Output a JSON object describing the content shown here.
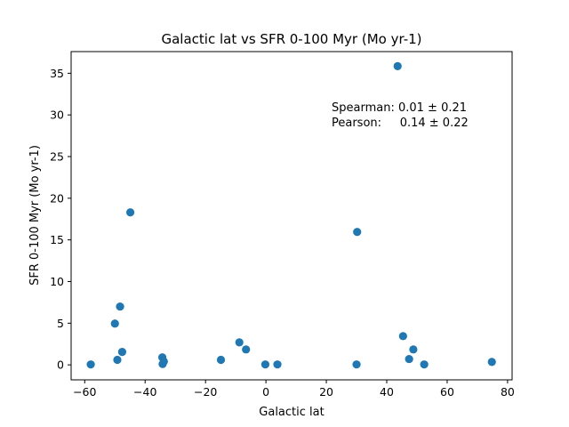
{
  "chart_data": {
    "type": "scatter",
    "title": "Galactic lat vs SFR 0-100 Myr (Mo yr-1)",
    "xlabel": "Galactic lat",
    "ylabel": "SFR 0-100 Myr (Mo yr-1)",
    "xlim": [
      -64.5,
      81.5
    ],
    "ylim": [
      -1.8,
      37.6
    ],
    "xticks": [
      -60,
      -40,
      -20,
      0,
      20,
      40,
      60,
      80
    ],
    "yticks": [
      0,
      5,
      10,
      15,
      20,
      25,
      30,
      35
    ],
    "grid": false,
    "marker_color": "#1f77b4",
    "annotations": [
      "Spearman: 0.01 ± 0.21",
      "Pearson:     0.14 ± 0.22"
    ],
    "points": [
      {
        "x": -58.0,
        "y": 0.05
      },
      {
        "x": -50.0,
        "y": 4.95
      },
      {
        "x": -49.2,
        "y": 0.6
      },
      {
        "x": -48.3,
        "y": 7.0
      },
      {
        "x": -47.6,
        "y": 1.55
      },
      {
        "x": -44.9,
        "y": 18.3
      },
      {
        "x": -34.3,
        "y": 0.9
      },
      {
        "x": -34.2,
        "y": 0.1
      },
      {
        "x": -33.8,
        "y": 0.4
      },
      {
        "x": -14.9,
        "y": 0.6
      },
      {
        "x": -8.8,
        "y": 2.7
      },
      {
        "x": -6.6,
        "y": 1.85
      },
      {
        "x": -0.2,
        "y": 0.05
      },
      {
        "x": 3.8,
        "y": 0.05
      },
      {
        "x": 30.0,
        "y": 0.05
      },
      {
        "x": 30.2,
        "y": 15.95
      },
      {
        "x": 43.6,
        "y": 35.85
      },
      {
        "x": 45.4,
        "y": 3.45
      },
      {
        "x": 47.4,
        "y": 0.7
      },
      {
        "x": 48.8,
        "y": 1.85
      },
      {
        "x": 52.4,
        "y": 0.05
      },
      {
        "x": 74.8,
        "y": 0.35
      }
    ]
  }
}
